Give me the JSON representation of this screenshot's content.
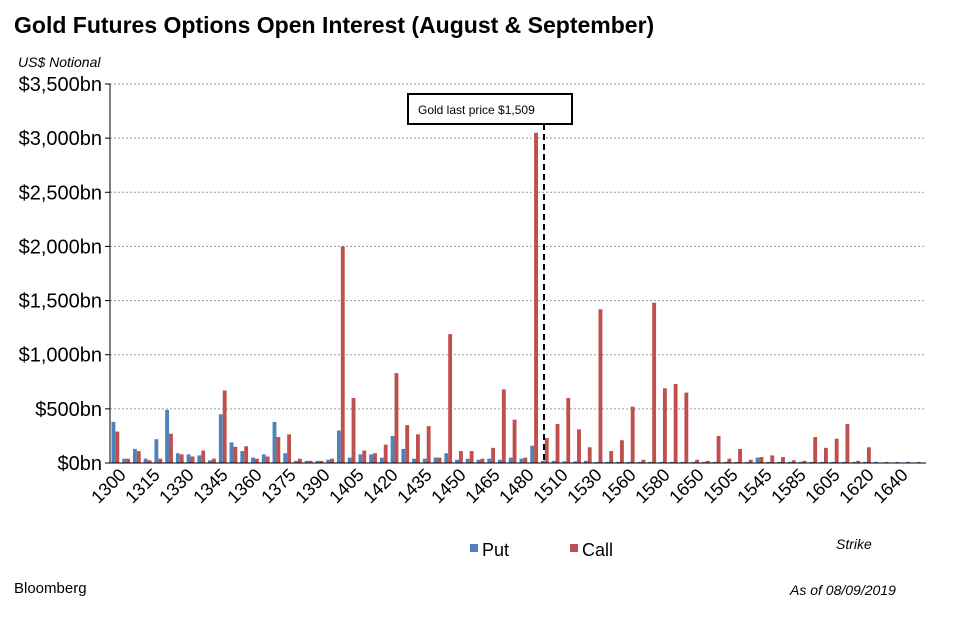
{
  "title": "Gold Futures Options Open Interest (August & September)",
  "units_label": "US$ Notional",
  "source": "Bloomberg",
  "as_of": "As of 08/09/2019",
  "colors": {
    "put": "#4f81bd",
    "call": "#c0504d",
    "grid": "#9a9a9a",
    "axis": "#000000"
  },
  "chart_data": {
    "type": "bar",
    "title": "Gold Futures Options Open Interest (August & September)",
    "xlabel": "Strike",
    "ylabel": "US$ Notional",
    "ylim": [
      0,
      3500
    ],
    "yticks": [
      0,
      500,
      1000,
      1500,
      2000,
      2500,
      3000,
      3500
    ],
    "ytick_labels": [
      "$0bn",
      "$500bn",
      "$1,000bn",
      "$1,500bn",
      "$2,000bn",
      "$2,500bn",
      "$3,000bn",
      "$3,500bn"
    ],
    "legend": {
      "placement": "bottom",
      "items": [
        "Put",
        "Call"
      ]
    },
    "grid": true,
    "x_tick_labels": [
      "1300",
      "1315",
      "1330",
      "1345",
      "1360",
      "1375",
      "1390",
      "1405",
      "1420",
      "1435",
      "1450",
      "1465",
      "1480",
      "1510",
      "1530",
      "1560",
      "1580",
      "1650",
      "1505",
      "1545",
      "1585",
      "1605",
      "1620",
      "1640"
    ],
    "annotation": {
      "text": "Gold last price $1,509"
    },
    "series": [
      {
        "name": "Put",
        "values": [
          380,
          40,
          130,
          40,
          220,
          490,
          90,
          80,
          70,
          25,
          450,
          190,
          110,
          50,
          80,
          380,
          90,
          20,
          20,
          20,
          30,
          300,
          50,
          80,
          80,
          50,
          250,
          130,
          40,
          40,
          50,
          90,
          30,
          40,
          30,
          40,
          30,
          50,
          40,
          160,
          20,
          20,
          15,
          15,
          20,
          10,
          10,
          10,
          10,
          10,
          10,
          10,
          10,
          10,
          10,
          10,
          10,
          10,
          10,
          10,
          50,
          10,
          10,
          10,
          10,
          10,
          10,
          10,
          10,
          10,
          10,
          10,
          10,
          10,
          10,
          10
        ]
      },
      {
        "name": "Call",
        "values": [
          290,
          40,
          110,
          25,
          40,
          270,
          80,
          60,
          115,
          40,
          670,
          150,
          155,
          40,
          60,
          240,
          265,
          40,
          20,
          20,
          40,
          2000,
          600,
          115,
          90,
          170,
          830,
          350,
          265,
          340,
          50,
          1190,
          110,
          110,
          40,
          140,
          680,
          400,
          50,
          3050,
          230,
          360,
          600,
          310,
          145,
          1420,
          110,
          210,
          520,
          30,
          1480,
          690,
          730,
          650,
          30,
          20,
          250,
          40,
          130,
          30,
          55,
          70,
          55,
          25,
          20,
          240,
          140,
          225,
          360,
          20,
          145,
          0,
          0,
          0,
          0,
          0
        ]
      }
    ]
  }
}
